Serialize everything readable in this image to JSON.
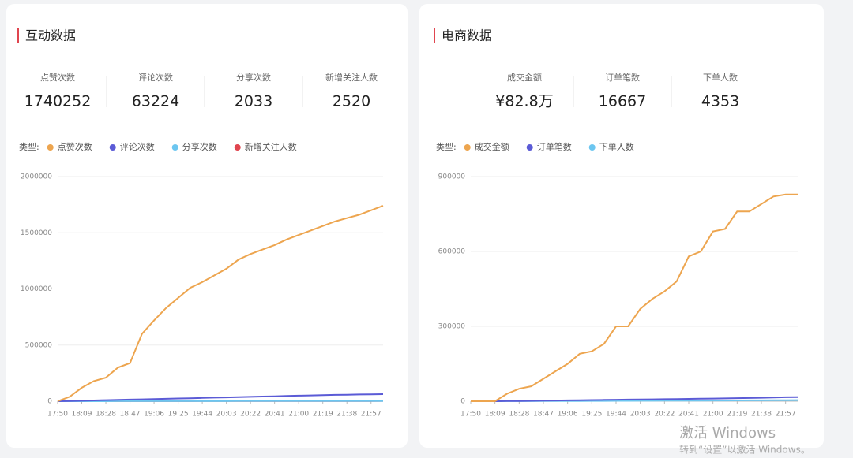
{
  "stats": [
    [
      {
        "label": "点赞次数",
        "value": 1740252
      },
      {
        "label": "评论次数",
        "value": 63224
      },
      {
        "label": "分享次数",
        "value": 2033
      },
      {
        "label": "新增关注人数",
        "value": 2520
      }
    ],
    [
      {
        "label": "成交金额",
        "value": "¥82.8万"
      },
      {
        "label": "订单笔数",
        "value": 16667
      },
      {
        "label": "下单人数",
        "value": 4353
      }
    ]
  ],
  "chart_data": [
    {
      "type": "line",
      "title": "互动数据",
      "legend_title": "类型:",
      "x": [
        "17:50",
        null,
        "18:09",
        null,
        "18:28",
        null,
        "18:47",
        null,
        "19:06",
        null,
        "19:25",
        null,
        "19:44",
        null,
        "20:03",
        null,
        "20:22",
        null,
        "20:41",
        null,
        "21:00",
        null,
        "21:19",
        null,
        "21:38",
        null,
        "21:57",
        null
      ],
      "ylim": [
        0,
        2000000
      ],
      "yticks": [
        0,
        500000,
        1000000,
        1500000,
        2000000
      ],
      "grid": true,
      "series": [
        {
          "name": "点赞次数",
          "color": "#eda54f",
          "values": [
            0,
            40000,
            120000,
            180000,
            210000,
            300000,
            340000,
            600000,
            720000,
            830000,
            920000,
            1010000,
            1060000,
            1120000,
            1180000,
            1260000,
            1310000,
            1350000,
            1390000,
            1440000,
            1480000,
            1520000,
            1560000,
            1600000,
            1630000,
            1660000,
            1700000,
            1740252
          ]
        },
        {
          "name": "评论次数",
          "color": "#5b5bd6",
          "values": [
            0,
            2000,
            4500,
            7000,
            9500,
            12000,
            14500,
            17000,
            19500,
            22000,
            24500,
            27000,
            29500,
            32000,
            34500,
            37000,
            39500,
            42000,
            44500,
            47000,
            49500,
            52000,
            54500,
            56500,
            58500,
            60500,
            62000,
            63224
          ]
        },
        {
          "name": "分享次数",
          "color": "#6cc6f0",
          "values": [
            0,
            80,
            150,
            230,
            300,
            380,
            450,
            530,
            600,
            680,
            750,
            830,
            900,
            980,
            1050,
            1130,
            1200,
            1280,
            1350,
            1430,
            1500,
            1580,
            1650,
            1730,
            1800,
            1880,
            1950,
            2033
          ]
        },
        {
          "name": "新增关注人数",
          "color": "#e0454f",
          "values": [
            0,
            90,
            190,
            280,
            370,
            460,
            560,
            650,
            740,
            840,
            930,
            1020,
            1120,
            1210,
            1300,
            1400,
            1490,
            1580,
            1680,
            1770,
            1860,
            1960,
            2050,
            2140,
            2240,
            2330,
            2420,
            2520
          ]
        }
      ]
    },
    {
      "type": "line",
      "title": "电商数据",
      "legend_title": "类型:",
      "x": [
        "17:50",
        null,
        "18:09",
        null,
        "18:28",
        null,
        "18:47",
        null,
        "19:06",
        null,
        "19:25",
        null,
        "19:44",
        null,
        "20:03",
        null,
        "20:22",
        null,
        "20:41",
        null,
        "21:00",
        null,
        "21:19",
        null,
        "21:38",
        null,
        "21:57",
        null
      ],
      "ylim": [
        0,
        900000
      ],
      "yticks": [
        0,
        300000,
        600000,
        900000
      ],
      "grid": true,
      "series": [
        {
          "name": "成交金额",
          "color": "#eda54f",
          "values": [
            0,
            0,
            0,
            30000,
            50000,
            60000,
            90000,
            120000,
            150000,
            190000,
            200000,
            230000,
            300000,
            300000,
            370000,
            410000,
            440000,
            480000,
            580000,
            600000,
            680000,
            690000,
            760000,
            760000,
            790000,
            820000,
            828000,
            828000
          ]
        },
        {
          "name": "订单笔数",
          "color": "#5b5bd6",
          "values": [
            0,
            0,
            0,
            600,
            1100,
            1700,
            2300,
            2900,
            3500,
            4100,
            4700,
            5300,
            5900,
            6500,
            7100,
            7700,
            8300,
            8900,
            9500,
            10100,
            10800,
            11500,
            12300,
            13100,
            14000,
            15000,
            16000,
            16667
          ]
        },
        {
          "name": "下单人数",
          "color": "#6cc6f0",
          "values": [
            0,
            0,
            0,
            160,
            310,
            470,
            620,
            780,
            930,
            1090,
            1240,
            1400,
            1550,
            1710,
            1860,
            2020,
            2170,
            2330,
            2480,
            2640,
            2800,
            2960,
            3140,
            3330,
            3540,
            3780,
            4060,
            4353
          ]
        }
      ]
    }
  ],
  "watermark": {
    "title": "激活 Windows",
    "subtitle": "转到“设置”以激活 Windows。"
  }
}
